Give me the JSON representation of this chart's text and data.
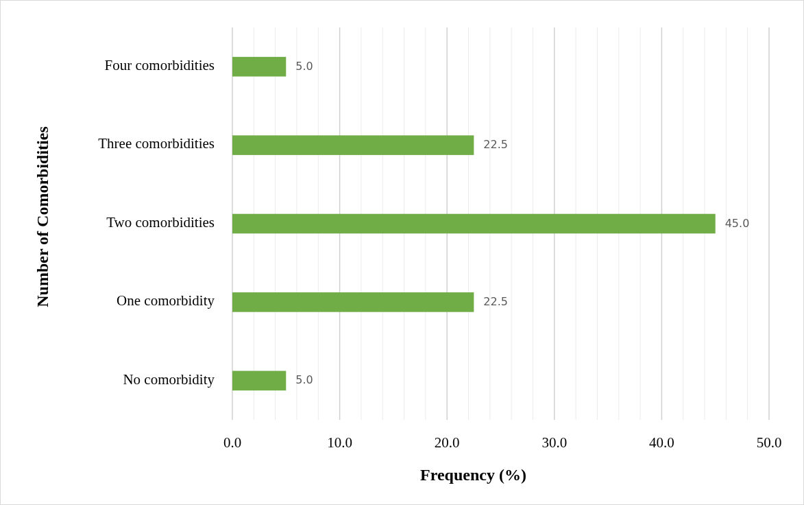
{
  "chart_data": {
    "type": "bar",
    "orientation": "horizontal",
    "xlabel": "Frequency (%)",
    "ylabel": "Number of Comorbidities",
    "categories": [
      "Four comorbidities",
      "Three comorbidities",
      "Two comorbidities",
      "One comorbidity",
      "No comorbidity"
    ],
    "values": [
      5.0,
      22.5,
      45.0,
      22.5,
      5.0
    ],
    "color": "#70ad47",
    "value_labels": [
      "5.0",
      "22.5",
      "45.0",
      "22.5",
      "5.0"
    ],
    "xlim": [
      0,
      50
    ],
    "xticks": [
      {
        "value": 0,
        "label": "0.0"
      },
      {
        "value": 2,
        "label": null
      },
      {
        "value": 4,
        "label": null
      },
      {
        "value": 6,
        "label": null
      },
      {
        "value": 8,
        "label": null
      },
      {
        "value": 10,
        "label": "10.0"
      },
      {
        "value": 12,
        "label": null
      },
      {
        "value": 14,
        "label": null
      },
      {
        "value": 16,
        "label": null
      },
      {
        "value": 18,
        "label": null
      },
      {
        "value": 20,
        "label": "20.0"
      },
      {
        "value": 22,
        "label": null
      },
      {
        "value": 24,
        "label": null
      },
      {
        "value": 26,
        "label": null
      },
      {
        "value": 28,
        "label": null
      },
      {
        "value": 30,
        "label": "30.0"
      },
      {
        "value": 32,
        "label": null
      },
      {
        "value": 34,
        "label": null
      },
      {
        "value": 36,
        "label": null
      },
      {
        "value": 38,
        "label": null
      },
      {
        "value": 40,
        "label": "40.0"
      },
      {
        "value": 42,
        "label": null
      },
      {
        "value": 44,
        "label": null
      },
      {
        "value": 46,
        "label": null
      },
      {
        "value": 48,
        "label": null
      },
      {
        "value": 50,
        "label": "50.0"
      }
    ],
    "grid": "x"
  }
}
